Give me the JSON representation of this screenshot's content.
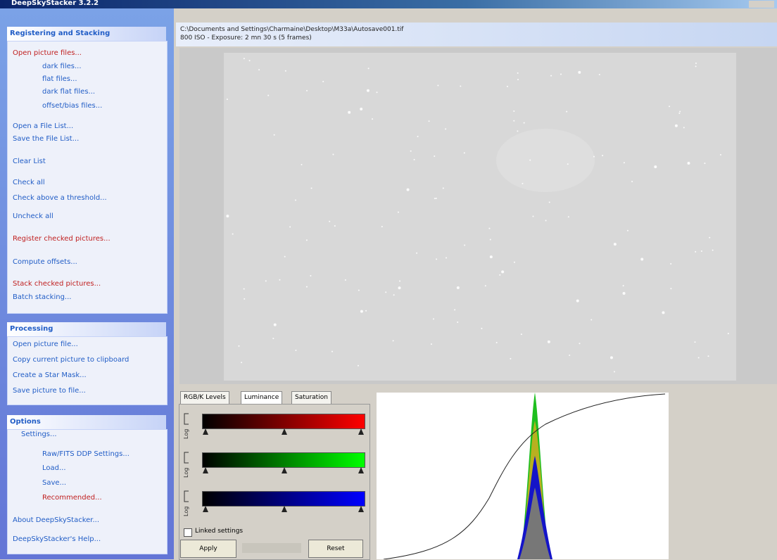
{
  "title_bar": {
    "title": "DeepSkyStacker 3.2.2"
  },
  "sidebar": {
    "groups": [
      {
        "title": "Registering and Stacking",
        "items": [
          "Open picture files...",
          "dark files...",
          "flat files...",
          "dark flat files...",
          "offset/bias files...",
          "Open a File List...",
          "Save the File List...",
          "Clear List",
          "Check all",
          "Check above a threshold...",
          "Uncheck all",
          "Register checked pictures...",
          "Compute offsets...",
          "Stack checked pictures...",
          "Batch stacking..."
        ]
      },
      {
        "title": "Processing",
        "items": [
          "Open picture file...",
          "Copy current picture to clipboard",
          "Create a Star Mask...",
          "Save picture to file..."
        ]
      },
      {
        "title": "Options",
        "items": [
          "Settings...",
          "Raw/FITS DDP Settings...",
          "Load...",
          "Save...",
          "Recommended...",
          "About DeepSkyStacker...",
          "DeepSkyStacker's Help..."
        ]
      }
    ]
  },
  "image_header": {
    "path": "C:\\Documents and Settings\\Charmaine\\Desktop\\M33a\\Autosave001.tif",
    "info": "800 ISO - Exposure: 2 mn 30 s (5 frames)"
  },
  "levels": {
    "tabs": [
      "RGB/K Levels",
      "Luminance",
      "Saturation"
    ],
    "log_labels": [
      "Log",
      "Log",
      "Log"
    ],
    "linked_settings": "Linked settings",
    "apply": "Apply",
    "reset": "Reset"
  }
}
